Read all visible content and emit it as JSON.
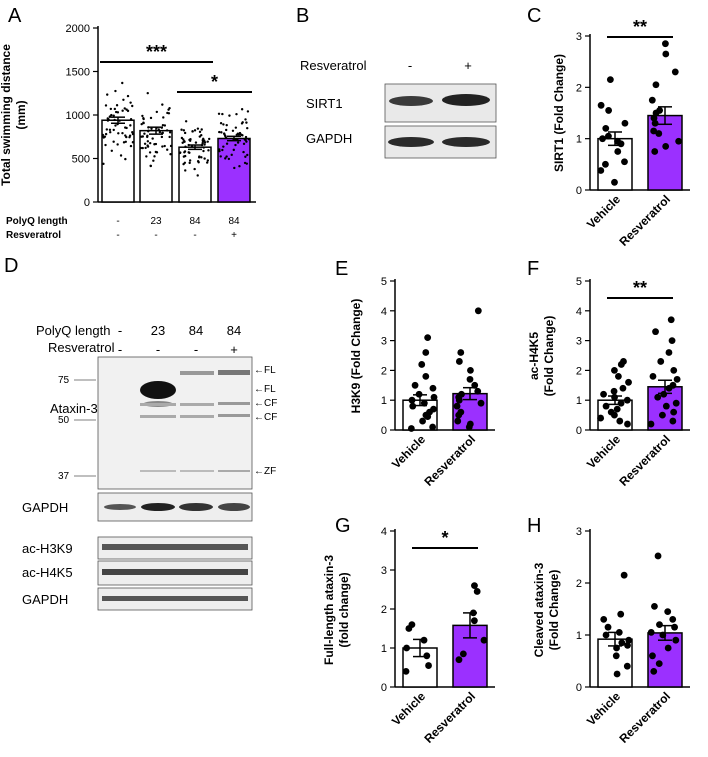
{
  "panels": {
    "A": "A",
    "B": "B",
    "C": "C",
    "D": "D",
    "E": "E",
    "F": "F",
    "G": "G",
    "H": "H"
  },
  "colors": {
    "purple": "#9B30FF",
    "white": "#ffffff",
    "black": "#000000"
  },
  "chart_data": [
    {
      "panel": "A",
      "type": "bar",
      "ylabel": "Total swimming distance\n(mm)",
      "ylim": [
        0,
        2000
      ],
      "yticks": [
        0,
        500,
        1000,
        1500,
        2000
      ],
      "categories": [
        "-/-",
        "23/-",
        "84/-",
        "84/+"
      ],
      "row_labels": {
        "polyq": "PolyQ length",
        "resveratrol": "Resveratrol"
      },
      "polyq_values": [
        "-",
        "23",
        "84",
        "84"
      ],
      "resveratrol_values": [
        "-",
        "-",
        "-",
        "+"
      ],
      "values": [
        940,
        820,
        630,
        730
      ],
      "errors": [
        35,
        40,
        25,
        25
      ],
      "bar_colors": [
        "#ffffff",
        "#ffffff",
        "#ffffff",
        "#9B30FF"
      ],
      "annotations": [
        {
          "text": "***",
          "from": 0,
          "to": 2
        },
        {
          "text": "*",
          "from": 2,
          "to": 3
        }
      ]
    },
    {
      "panel": "C",
      "type": "bar",
      "ylabel": "SIRT1 (Fold Change)",
      "ylim": [
        0,
        3
      ],
      "yticks": [
        0,
        1,
        2,
        3
      ],
      "categories": [
        "Vehicle",
        "Resveratrol"
      ],
      "values": [
        1.0,
        1.45
      ],
      "errors": [
        0.13,
        0.17
      ],
      "points": [
        [
          0.15,
          0.38,
          0.5,
          0.55,
          0.75,
          0.9,
          0.95,
          1.0,
          1.05,
          1.2,
          1.3,
          1.55,
          1.65,
          2.15
        ],
        [
          0.75,
          0.85,
          0.95,
          1.1,
          1.15,
          1.3,
          1.4,
          1.5,
          1.55,
          1.75,
          2.05,
          2.3,
          2.65,
          2.85
        ]
      ],
      "annotations": [
        {
          "text": "**",
          "from": 0,
          "to": 1
        }
      ]
    },
    {
      "panel": "E",
      "type": "bar",
      "ylabel": "H3K9 (Fold Change)",
      "ylim": [
        0,
        5
      ],
      "yticks": [
        0,
        1,
        2,
        3,
        4,
        5
      ],
      "categories": [
        "Vehicle",
        "Resveratrol"
      ],
      "values": [
        1.0,
        1.22
      ],
      "errors": [
        0.18,
        0.2
      ],
      "points": [
        [
          0.05,
          0.1,
          0.3,
          0.45,
          0.5,
          0.6,
          0.7,
          0.8,
          0.9,
          1.0,
          1.1,
          1.2,
          1.4,
          1.5,
          1.8,
          2.2,
          2.6,
          3.1
        ],
        [
          0.1,
          0.2,
          0.3,
          0.5,
          0.6,
          0.8,
          0.9,
          1.0,
          1.1,
          1.2,
          1.3,
          1.5,
          1.7,
          2.0,
          2.3,
          2.6,
          4.0
        ]
      ],
      "annotations": []
    },
    {
      "panel": "F",
      "type": "bar",
      "ylabel": "ac-H4K5\n(Fold Change)",
      "ylim": [
        0,
        5
      ],
      "yticks": [
        0,
        1,
        2,
        3,
        4,
        5
      ],
      "categories": [
        "Vehicle",
        "Resveratrol"
      ],
      "values": [
        1.0,
        1.45
      ],
      "errors": [
        0.14,
        0.22
      ],
      "points": [
        [
          0.2,
          0.3,
          0.4,
          0.5,
          0.6,
          0.7,
          0.8,
          0.9,
          1.0,
          1.1,
          1.2,
          1.3,
          1.4,
          1.6,
          1.8,
          2.0,
          2.2,
          2.3
        ],
        [
          0.2,
          0.3,
          0.5,
          0.6,
          0.8,
          0.9,
          1.1,
          1.2,
          1.4,
          1.5,
          1.7,
          1.8,
          2.0,
          2.3,
          2.6,
          3.0,
          3.3,
          3.7
        ]
      ],
      "annotations": [
        {
          "text": "**",
          "from": 0,
          "to": 1
        }
      ]
    },
    {
      "panel": "G",
      "type": "bar",
      "ylabel": "Full-length ataxin-3\n(fold change)",
      "ylim": [
        0,
        4
      ],
      "yticks": [
        0,
        1,
        2,
        3,
        4
      ],
      "categories": [
        "Vehicle",
        "Resveratrol"
      ],
      "values": [
        1.0,
        1.58
      ],
      "errors": [
        0.22,
        0.32
      ],
      "points": [
        [
          0.4,
          0.55,
          0.8,
          1.0,
          1.2,
          1.5,
          1.6
        ],
        [
          0.7,
          0.85,
          1.2,
          1.7,
          1.9,
          2.45,
          2.6
        ]
      ],
      "annotations": [
        {
          "text": "*",
          "from": 0,
          "to": 1
        }
      ]
    },
    {
      "panel": "H",
      "type": "bar",
      "ylabel": "Cleaved ataxin-3\n(Fold Change)",
      "ylim": [
        0,
        3
      ],
      "yticks": [
        0,
        1,
        2,
        3
      ],
      "categories": [
        "Vehicle",
        "Resveratrol"
      ],
      "values": [
        0.92,
        1.04
      ],
      "errors": [
        0.13,
        0.14
      ],
      "points": [
        [
          0.25,
          0.4,
          0.6,
          0.75,
          0.8,
          0.85,
          0.9,
          1.0,
          1.05,
          1.15,
          1.3,
          1.4,
          2.15
        ],
        [
          0.3,
          0.45,
          0.6,
          0.75,
          0.9,
          1.0,
          1.05,
          1.15,
          1.2,
          1.3,
          1.45,
          1.55,
          2.52
        ]
      ],
      "annotations": []
    }
  ],
  "blot_B": {
    "treatment_label": "Resveratrol",
    "lanes": [
      "-",
      "+"
    ],
    "rows": [
      "SIRT1",
      "GAPDH"
    ]
  },
  "blot_D": {
    "polyq_label": "PolyQ length",
    "resveratrol_label": "Resveratrol",
    "polyq_lanes": [
      "-",
      "23",
      "84",
      "84"
    ],
    "resveratrol_lanes": [
      "-",
      "-",
      "-",
      "+"
    ],
    "markers": [
      "75",
      "50",
      "37"
    ],
    "ataxin_label": "Ataxin-3",
    "gapdh_label": "GAPDH",
    "h3k9_label": "ac-H3K9",
    "h4k5_label": "ac-H4K5",
    "gapdh2_label": "GAPDH",
    "arrows": [
      "←FL",
      "←FL",
      "←CF",
      "←CF",
      "←ZF"
    ]
  }
}
